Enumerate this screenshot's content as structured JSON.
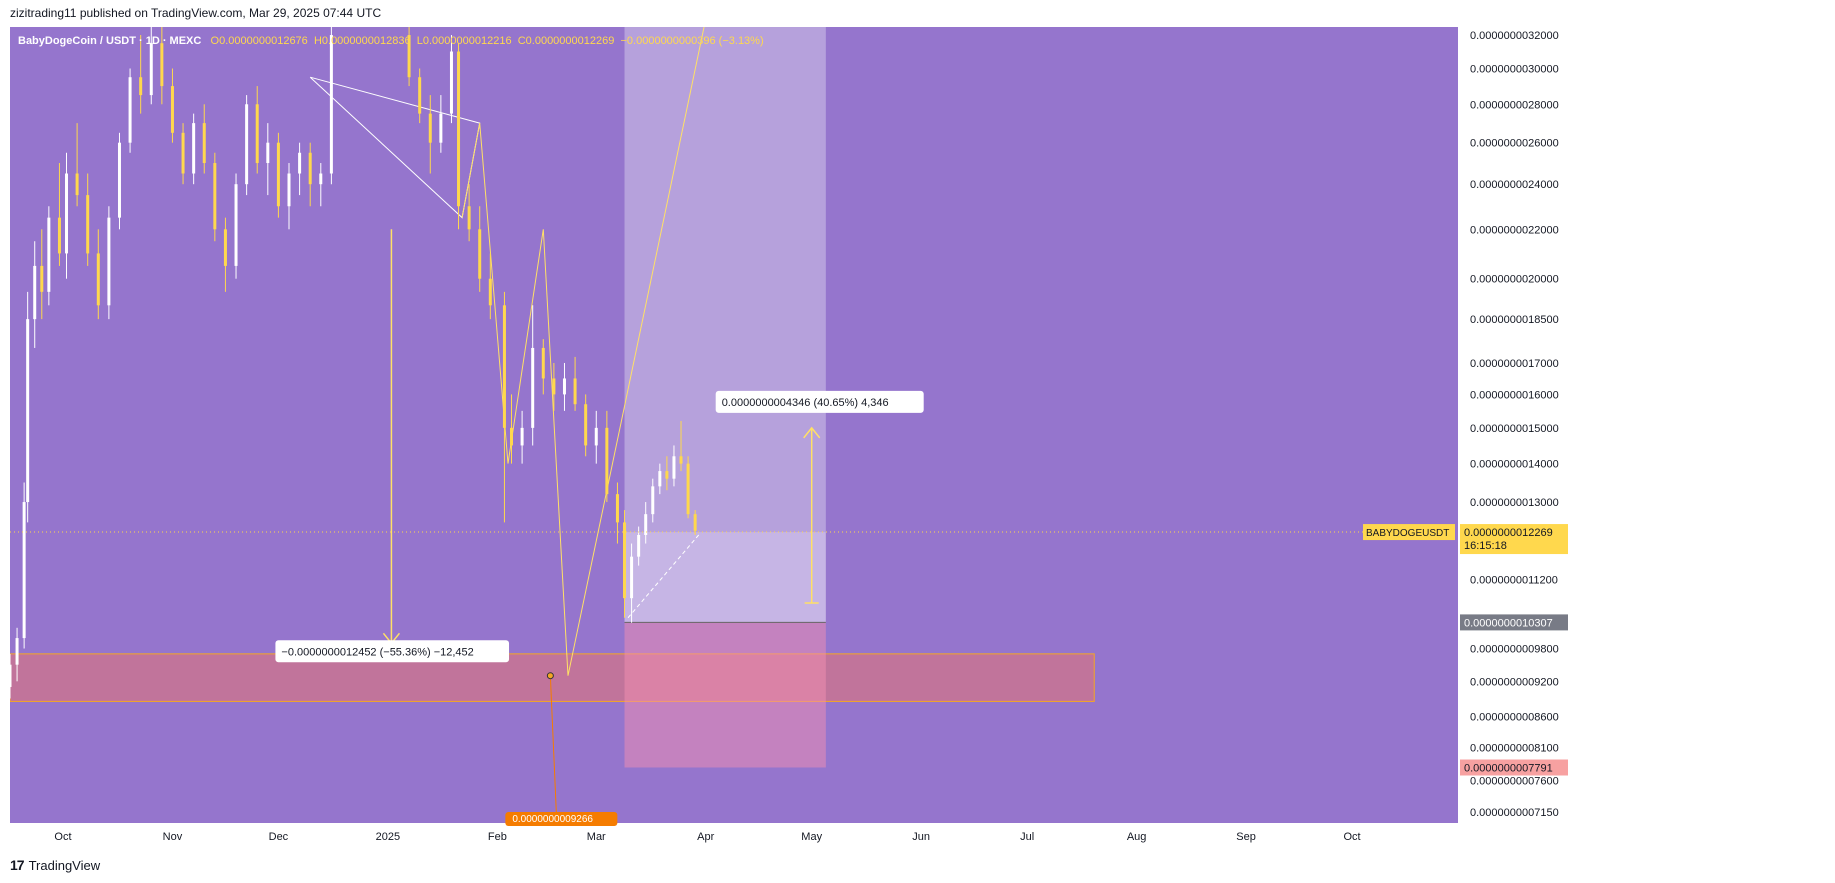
{
  "header": {
    "published": "zizitrading11 published on TradingView.com, Mar 29, 2025 07:44 UTC"
  },
  "symbol": {
    "name": "BabyDogeCoin / USDT · 1D · MEXC",
    "open_label": "O",
    "open": "0.0000000012676",
    "high_label": "H",
    "high": "0.0000000012836",
    "low_label": "L",
    "low": "0.0000000012216",
    "close_label": "C",
    "close": "0.0000000012269",
    "change": "−0.0000000000396 (−3.13%)"
  },
  "footer": {
    "brand": "TradingView"
  },
  "colors": {
    "background": "#9575cd",
    "candle_up": "#ffffff",
    "candle_down": "#ffd84d",
    "profit_zone": "#d1c4e9",
    "loss_zone": "#f48fb1",
    "support_zone": "#e57373",
    "annotation": "#ffe066"
  },
  "chart_data": {
    "type": "candlestick",
    "title": "",
    "ylabel": "",
    "y_scale": "log",
    "ylim": [
      7e-10,
      3.25e-09
    ],
    "x_range": [
      "2024-09-16",
      "2025-10-31"
    ],
    "x_ticks": [
      {
        "date": "2024-10-01",
        "label": "Oct"
      },
      {
        "date": "2024-11-01",
        "label": "Nov"
      },
      {
        "date": "2024-12-01",
        "label": "Dec"
      },
      {
        "date": "2025-01-01",
        "label": "2025"
      },
      {
        "date": "2025-02-01",
        "label": "Feb"
      },
      {
        "date": "2025-03-01",
        "label": "Mar"
      },
      {
        "date": "2025-04-01",
        "label": "Apr"
      },
      {
        "date": "2025-05-01",
        "label": "May"
      },
      {
        "date": "2025-06-01",
        "label": "Jun"
      },
      {
        "date": "2025-07-01",
        "label": "Jul"
      },
      {
        "date": "2025-08-01",
        "label": "Aug"
      },
      {
        "date": "2025-09-01",
        "label": "Sep"
      },
      {
        "date": "2025-10-01",
        "label": "Oct"
      }
    ],
    "y_ticks": [
      {
        "value": 3.2e-09,
        "label": "0.0000000032000"
      },
      {
        "value": 3e-09,
        "label": "0.0000000030000"
      },
      {
        "value": 2.8e-09,
        "label": "0.0000000028000"
      },
      {
        "value": 2.6e-09,
        "label": "0.0000000026000"
      },
      {
        "value": 2.4e-09,
        "label": "0.0000000024000"
      },
      {
        "value": 2.2e-09,
        "label": "0.0000000022000"
      },
      {
        "value": 2e-09,
        "label": "0.0000000020000"
      },
      {
        "value": 1.85e-09,
        "label": "0.0000000018500"
      },
      {
        "value": 1.7e-09,
        "label": "0.0000000017000"
      },
      {
        "value": 1.6e-09,
        "label": "0.0000000016000"
      },
      {
        "value": 1.5e-09,
        "label": "0.0000000015000"
      },
      {
        "value": 1.4e-09,
        "label": "0.0000000014000"
      },
      {
        "value": 1.3e-09,
        "label": "0.0000000013000"
      },
      {
        "value": 1.12e-09,
        "label": "0.0000000011200"
      },
      {
        "value": 9.8e-10,
        "label": "0.0000000009800"
      },
      {
        "value": 9.2e-10,
        "label": "0.0000000009200"
      },
      {
        "value": 8.6e-10,
        "label": "0.0000000008600"
      },
      {
        "value": 8.1e-10,
        "label": "0.0000000008100"
      },
      {
        "value": 7.6e-10,
        "label": "0.0000000007600"
      },
      {
        "value": 7.15e-10,
        "label": "0.0000000007150"
      }
    ],
    "candles": [
      {
        "t": "2024-09-16",
        "o": 9.1e-10,
        "h": 9.7e-10,
        "l": 8.9e-10,
        "c": 9.5e-10
      },
      {
        "t": "2024-09-18",
        "o": 9.5e-10,
        "h": 1.02e-09,
        "l": 9.2e-10,
        "c": 1e-09
      },
      {
        "t": "2024-09-20",
        "o": 1e-09,
        "h": 1.35e-09,
        "l": 9.8e-10,
        "c": 1.3e-09
      },
      {
        "t": "2024-09-21",
        "o": 1.3e-09,
        "h": 1.95e-09,
        "l": 1.25e-09,
        "c": 1.85e-09
      },
      {
        "t": "2024-09-23",
        "o": 1.85e-09,
        "h": 2.15e-09,
        "l": 1.75e-09,
        "c": 2.05e-09
      },
      {
        "t": "2024-09-25",
        "o": 2.05e-09,
        "h": 2.2e-09,
        "l": 1.85e-09,
        "c": 1.95e-09
      },
      {
        "t": "2024-09-27",
        "o": 1.95e-09,
        "h": 2.3e-09,
        "l": 1.9e-09,
        "c": 2.25e-09
      },
      {
        "t": "2024-09-30",
        "o": 2.25e-09,
        "h": 2.5e-09,
        "l": 2.05e-09,
        "c": 2.1e-09
      },
      {
        "t": "2024-10-02",
        "o": 2.1e-09,
        "h": 2.55e-09,
        "l": 2e-09,
        "c": 2.45e-09
      },
      {
        "t": "2024-10-05",
        "o": 2.45e-09,
        "h": 2.7e-09,
        "l": 2.3e-09,
        "c": 2.35e-09
      },
      {
        "t": "2024-10-08",
        "o": 2.35e-09,
        "h": 2.45e-09,
        "l": 2.05e-09,
        "c": 2.1e-09
      },
      {
        "t": "2024-10-11",
        "o": 2.1e-09,
        "h": 2.2e-09,
        "l": 1.85e-09,
        "c": 1.9e-09
      },
      {
        "t": "2024-10-14",
        "o": 1.9e-09,
        "h": 2.3e-09,
        "l": 1.85e-09,
        "c": 2.25e-09
      },
      {
        "t": "2024-10-17",
        "o": 2.25e-09,
        "h": 2.65e-09,
        "l": 2.2e-09,
        "c": 2.6e-09
      },
      {
        "t": "2024-10-20",
        "o": 2.6e-09,
        "h": 3e-09,
        "l": 2.55e-09,
        "c": 2.95e-09
      },
      {
        "t": "2024-10-23",
        "o": 2.95e-09,
        "h": 3.2e-09,
        "l": 2.75e-09,
        "c": 2.85e-09
      },
      {
        "t": "2024-10-26",
        "o": 2.85e-09,
        "h": 3.25e-09,
        "l": 2.8e-09,
        "c": 3.15e-09
      },
      {
        "t": "2024-10-29",
        "o": 3.15e-09,
        "h": 3.25e-09,
        "l": 2.8e-09,
        "c": 2.9e-09
      },
      {
        "t": "2024-11-01",
        "o": 2.9e-09,
        "h": 3e-09,
        "l": 2.6e-09,
        "c": 2.65e-09
      },
      {
        "t": "2024-11-04",
        "o": 2.65e-09,
        "h": 2.7e-09,
        "l": 2.4e-09,
        "c": 2.45e-09
      },
      {
        "t": "2024-11-07",
        "o": 2.45e-09,
        "h": 2.75e-09,
        "l": 2.4e-09,
        "c": 2.7e-09
      },
      {
        "t": "2024-11-10",
        "o": 2.7e-09,
        "h": 2.8e-09,
        "l": 2.45e-09,
        "c": 2.5e-09
      },
      {
        "t": "2024-11-13",
        "o": 2.5e-09,
        "h": 2.55e-09,
        "l": 2.15e-09,
        "c": 2.2e-09
      },
      {
        "t": "2024-11-16",
        "o": 2.2e-09,
        "h": 2.25e-09,
        "l": 1.95e-09,
        "c": 2.05e-09
      },
      {
        "t": "2024-11-19",
        "o": 2.05e-09,
        "h": 2.45e-09,
        "l": 2e-09,
        "c": 2.4e-09
      },
      {
        "t": "2024-11-22",
        "o": 2.4e-09,
        "h": 2.85e-09,
        "l": 2.35e-09,
        "c": 2.8e-09
      },
      {
        "t": "2024-11-25",
        "o": 2.8e-09,
        "h": 2.9e-09,
        "l": 2.45e-09,
        "c": 2.5e-09
      },
      {
        "t": "2024-11-28",
        "o": 2.5e-09,
        "h": 2.7e-09,
        "l": 2.35e-09,
        "c": 2.6e-09
      },
      {
        "t": "2024-12-01",
        "o": 2.6e-09,
        "h": 2.65e-09,
        "l": 2.25e-09,
        "c": 2.3e-09
      },
      {
        "t": "2024-12-04",
        "o": 2.3e-09,
        "h": 2.5e-09,
        "l": 2.2e-09,
        "c": 2.45e-09
      },
      {
        "t": "2024-12-07",
        "o": 2.45e-09,
        "h": 2.6e-09,
        "l": 2.35e-09,
        "c": 2.55e-09
      },
      {
        "t": "2024-12-10",
        "o": 2.55e-09,
        "h": 2.6e-09,
        "l": 2.3e-09,
        "c": 2.4e-09
      },
      {
        "t": "2024-12-13",
        "o": 2.4e-09,
        "h": 2.5e-09,
        "l": 2.3e-09,
        "c": 2.45e-09
      },
      {
        "t": "2024-12-16",
        "o": 2.45e-09,
        "h": 3.25e-09,
        "l": 2.4e-09,
        "c": 3.2e-09
      },
      {
        "t": "2025-01-07",
        "o": 3.2e-09,
        "h": 3.25e-09,
        "l": 2.9e-09,
        "c": 2.95e-09
      },
      {
        "t": "2025-01-10",
        "o": 2.95e-09,
        "h": 3e-09,
        "l": 2.7e-09,
        "c": 2.75e-09
      },
      {
        "t": "2025-01-13",
        "o": 2.75e-09,
        "h": 2.85e-09,
        "l": 2.45e-09,
        "c": 2.6e-09
      },
      {
        "t": "2025-01-16",
        "o": 2.6e-09,
        "h": 2.85e-09,
        "l": 2.55e-09,
        "c": 2.75e-09
      },
      {
        "t": "2025-01-19",
        "o": 2.75e-09,
        "h": 3.2e-09,
        "l": 2.7e-09,
        "c": 3.1e-09
      },
      {
        "t": "2025-01-21",
        "o": 3.1e-09,
        "h": 3.15e-09,
        "l": 2.2e-09,
        "c": 2.3e-09
      },
      {
        "t": "2025-01-24",
        "o": 2.3e-09,
        "h": 2.4e-09,
        "l": 2.15e-09,
        "c": 2.2e-09
      },
      {
        "t": "2025-01-27",
        "o": 2.2e-09,
        "h": 2.3e-09,
        "l": 1.95e-09,
        "c": 2e-09
      },
      {
        "t": "2025-01-30",
        "o": 2e-09,
        "h": 2.1e-09,
        "l": 1.85e-09,
        "c": 1.9e-09
      },
      {
        "t": "2025-02-03",
        "o": 1.9e-09,
        "h": 1.95e-09,
        "l": 1.25e-09,
        "c": 1.5e-09
      },
      {
        "t": "2025-02-05",
        "o": 1.5e-09,
        "h": 1.6e-09,
        "l": 1.4e-09,
        "c": 1.45e-09
      },
      {
        "t": "2025-02-08",
        "o": 1.45e-09,
        "h": 1.55e-09,
        "l": 1.4e-09,
        "c": 1.5e-09
      },
      {
        "t": "2025-02-11",
        "o": 1.5e-09,
        "h": 1.9e-09,
        "l": 1.45e-09,
        "c": 1.75e-09
      },
      {
        "t": "2025-02-14",
        "o": 1.75e-09,
        "h": 1.78e-09,
        "l": 1.6e-09,
        "c": 1.65e-09
      },
      {
        "t": "2025-02-17",
        "o": 1.65e-09,
        "h": 1.7e-09,
        "l": 1.55e-09,
        "c": 1.6e-09
      },
      {
        "t": "2025-02-20",
        "o": 1.6e-09,
        "h": 1.7e-09,
        "l": 1.55e-09,
        "c": 1.65e-09
      },
      {
        "t": "2025-02-23",
        "o": 1.65e-09,
        "h": 1.72e-09,
        "l": 1.55e-09,
        "c": 1.57e-09
      },
      {
        "t": "2025-02-26",
        "o": 1.57e-09,
        "h": 1.6e-09,
        "l": 1.42e-09,
        "c": 1.45e-09
      },
      {
        "t": "2025-03-01",
        "o": 1.45e-09,
        "h": 1.55e-09,
        "l": 1.4e-09,
        "c": 1.5e-09
      },
      {
        "t": "2025-03-04",
        "o": 1.5e-09,
        "h": 1.55e-09,
        "l": 1.3e-09,
        "c": 1.32e-09
      },
      {
        "t": "2025-03-07",
        "o": 1.32e-09,
        "h": 1.35e-09,
        "l": 1.2e-09,
        "c": 1.25e-09
      },
      {
        "t": "2025-03-09",
        "o": 1.25e-09,
        "h": 1.28e-09,
        "l": 1.04e-09,
        "c": 1.08e-09
      },
      {
        "t": "2025-03-11",
        "o": 1.08e-09,
        "h": 1.2e-09,
        "l": 1.03e-09,
        "c": 1.17e-09
      },
      {
        "t": "2025-03-13",
        "o": 1.17e-09,
        "h": 1.24e-09,
        "l": 1.15e-09,
        "c": 1.22e-09
      },
      {
        "t": "2025-03-15",
        "o": 1.22e-09,
        "h": 1.3e-09,
        "l": 1.2e-09,
        "c": 1.27e-09
      },
      {
        "t": "2025-03-17",
        "o": 1.27e-09,
        "h": 1.36e-09,
        "l": 1.25e-09,
        "c": 1.34e-09
      },
      {
        "t": "2025-03-19",
        "o": 1.34e-09,
        "h": 1.4e-09,
        "l": 1.32e-09,
        "c": 1.38e-09
      },
      {
        "t": "2025-03-21",
        "o": 1.38e-09,
        "h": 1.42e-09,
        "l": 1.33e-09,
        "c": 1.36e-09
      },
      {
        "t": "2025-03-23",
        "o": 1.36e-09,
        "h": 1.45e-09,
        "l": 1.34e-09,
        "c": 1.42e-09
      },
      {
        "t": "2025-03-25",
        "o": 1.42e-09,
        "h": 1.52e-09,
        "l": 1.38e-09,
        "c": 1.4e-09
      },
      {
        "t": "2025-03-27",
        "o": 1.4e-09,
        "h": 1.42e-09,
        "l": 1.26e-09,
        "c": 1.27e-09
      },
      {
        "t": "2025-03-29",
        "o": 1.27e-09,
        "h": 1.28e-09,
        "l": 1.22e-09,
        "c": 1.23e-09
      }
    ],
    "current_price": {
      "symbol": "BABYDOGEUSDT",
      "value": "0.0000000012269",
      "countdown": "16:15:18",
      "price": 1.2269e-09
    },
    "position": {
      "start": "2025-03-09",
      "end": "2025-05-05",
      "entry": 1.2269e-09,
      "target": 3.25e-09,
      "stop": 7.791e-10,
      "entry_low": 1.0307e-09,
      "stop_label": "0.0000000007791",
      "entry_label": "0.0000000010307"
    },
    "support_zone": {
      "start": "2024-09-16",
      "end": "2025-07-20",
      "top": 9.7e-10,
      "bottom": 8.85e-10
    },
    "measurements": [
      {
        "text": "0.0000000004346 (40.65%) 4,346",
        "date": "2025-05-01",
        "from": 1.07e-09,
        "to": 1.5e-09
      },
      {
        "text": "−0.0000000012452 (−55.36%) −12,452",
        "date": "2025-01-02",
        "from": 2.2e-09,
        "to": 9.9e-10
      }
    ],
    "pattern_lines": [
      [
        [
          "2024-12-10",
          2.95e-09
        ],
        [
          "2025-01-22",
          2.25e-09
        ],
        [
          "2025-01-27",
          2.7e-09
        ],
        [
          "2024-12-10",
          2.95e-09
        ]
      ],
      [
        [
          "2025-01-22",
          2.25e-09
        ],
        [
          "2025-01-27",
          2.7e-09
        ],
        [
          "2025-02-04",
          1.4e-09
        ],
        [
          "2025-02-14",
          2.2e-09
        ],
        [
          "2025-02-21",
          9.3e-10
        ],
        [
          "2025-04-01",
          3.3e-09
        ]
      ]
    ],
    "marker": {
      "date": "2025-02-16",
      "value": 9.3e-10,
      "label": "0.0000000009266"
    },
    "projection_line": [
      [
        "2025-03-10",
        1.04e-09
      ],
      [
        "2025-03-30",
        1.22e-09
      ]
    ]
  }
}
